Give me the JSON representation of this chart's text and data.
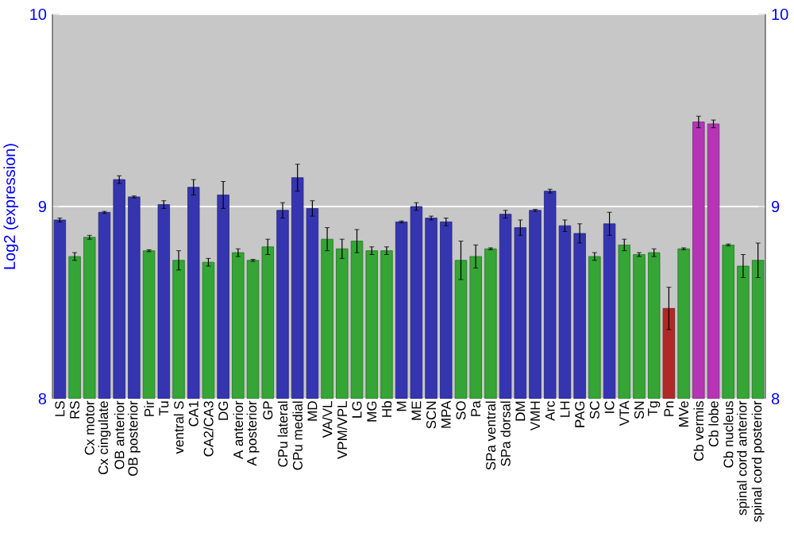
{
  "chart_data": {
    "type": "bar",
    "ylabel": "Log2 (expression)",
    "categories": [
      "LS",
      "RS",
      "Cx motor",
      "Cx cingulate",
      "OB anterior",
      "OB posterior",
      "Pir",
      "Tu",
      "ventral S",
      "CA1",
      "CA2/CA3",
      "DG",
      "A anterior",
      "A posterior",
      "GP",
      "CPu lateral",
      "CPu medial",
      "MD",
      "VA/VL",
      "VPM/VPL",
      "LG",
      "MG",
      "Hb",
      "M",
      "ME",
      "SCN",
      "MPA",
      "SO",
      "Pa",
      "SPa ventral",
      "SPa dorsal",
      "DM",
      "VMH",
      "Arc",
      "LH",
      "PAG",
      "SC",
      "IC",
      "VTA",
      "SN",
      "Tg",
      "Pn",
      "MVe",
      "Cb vermis",
      "Cb lobe",
      "Cb nucleus",
      "spinal cord anterior",
      "spinal cord posterior"
    ],
    "values": [
      8.93,
      8.74,
      8.84,
      8.97,
      9.14,
      9.05,
      8.77,
      9.01,
      8.72,
      9.1,
      8.71,
      9.06,
      8.76,
      8.72,
      8.79,
      8.98,
      9.15,
      8.99,
      8.83,
      8.78,
      8.82,
      8.77,
      8.77,
      8.92,
      9.0,
      8.94,
      8.92,
      8.72,
      8.74,
      8.78,
      8.96,
      8.89,
      8.98,
      9.08,
      8.9,
      8.86,
      8.74,
      8.91,
      8.8,
      8.75,
      8.76,
      8.47,
      8.78,
      9.44,
      9.43,
      8.8,
      8.69,
      8.72
    ],
    "errors": [
      0.01,
      0.02,
      0.01,
      0.005,
      0.02,
      0.005,
      0.005,
      0.02,
      0.05,
      0.04,
      0.02,
      0.07,
      0.02,
      0.005,
      0.04,
      0.04,
      0.07,
      0.04,
      0.06,
      0.05,
      0.06,
      0.02,
      0.02,
      0.005,
      0.02,
      0.01,
      0.02,
      0.1,
      0.06,
      0.005,
      0.02,
      0.04,
      0.005,
      0.01,
      0.03,
      0.05,
      0.02,
      0.06,
      0.03,
      0.01,
      0.02,
      0.11,
      0.005,
      0.03,
      0.02,
      0.005,
      0.06,
      0.09
    ],
    "colors": [
      "#3535b0",
      "#35a535",
      "#35a535",
      "#3535b0",
      "#3535b0",
      "#3535b0",
      "#35a535",
      "#3535b0",
      "#35a535",
      "#3535b0",
      "#35a535",
      "#3535b0",
      "#35a535",
      "#35a535",
      "#35a535",
      "#3535b0",
      "#3535b0",
      "#3535b0",
      "#35a535",
      "#35a535",
      "#35a535",
      "#35a535",
      "#35a535",
      "#3535b0",
      "#3535b0",
      "#3535b0",
      "#3535b0",
      "#35a535",
      "#35a535",
      "#35a535",
      "#3535b0",
      "#3535b0",
      "#3535b0",
      "#3535b0",
      "#3535b0",
      "#3535b0",
      "#35a535",
      "#3535b0",
      "#35a535",
      "#35a535",
      "#35a535",
      "#b02828",
      "#35a535",
      "#b535b5",
      "#b535b5",
      "#35a535",
      "#35a535",
      "#35a535"
    ],
    "ylim": [
      8,
      10
    ],
    "yticks": [
      8,
      9,
      10
    ],
    "y2lim": [
      8,
      10
    ],
    "y2ticks": [
      8,
      9,
      10
    ],
    "grid": "y"
  }
}
